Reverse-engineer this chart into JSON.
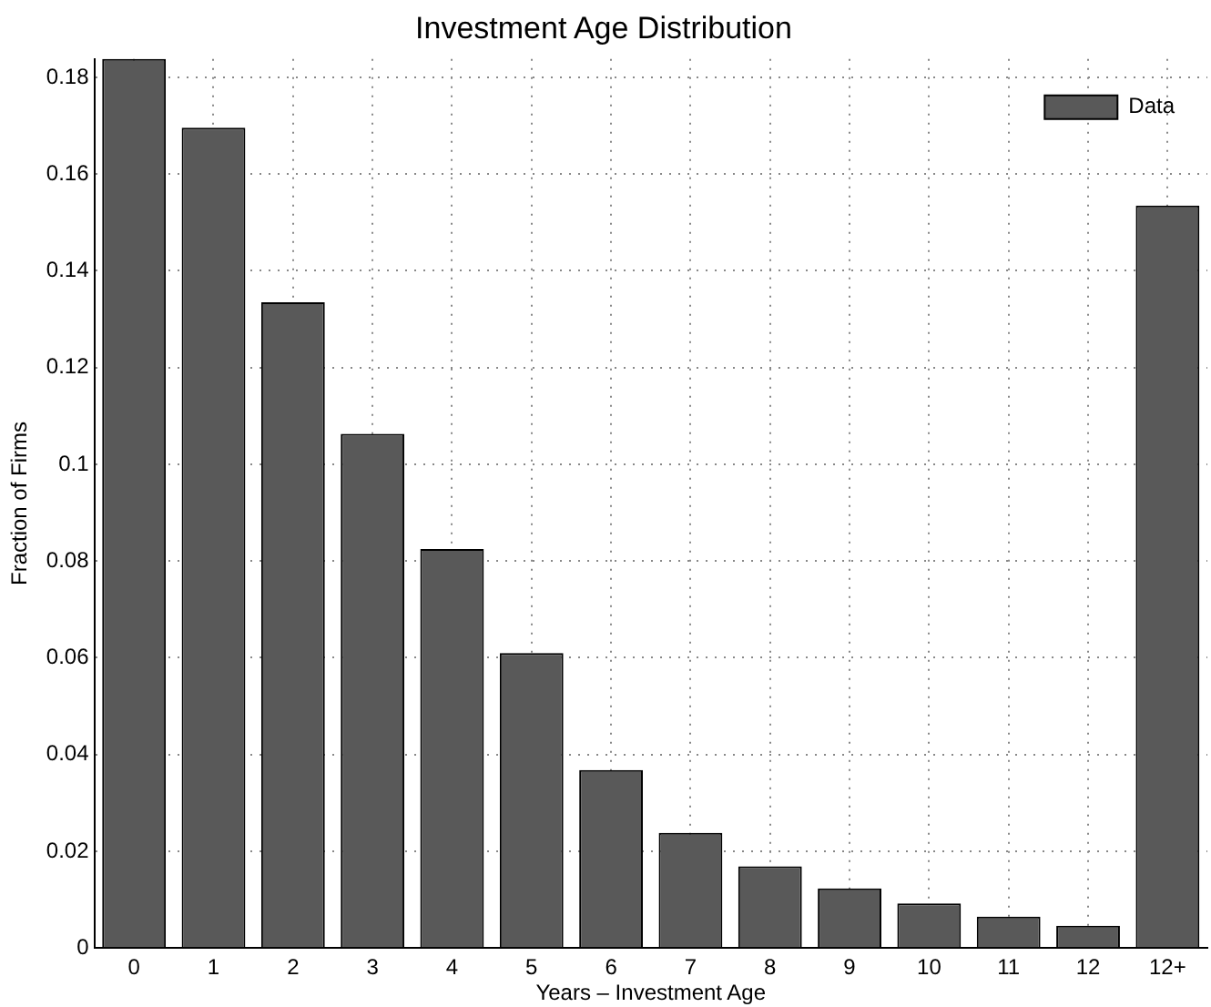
{
  "chart_data": {
    "type": "bar",
    "title": "Investment Age Distribution",
    "xlabel": "Years – Investment Age",
    "ylabel": "Fraction of Firms",
    "categories": [
      "0",
      "1",
      "2",
      "3",
      "4",
      "5",
      "6",
      "7",
      "8",
      "9",
      "10",
      "11",
      "12",
      "12+"
    ],
    "series": [
      {
        "name": "Data",
        "color": "#595959",
        "values": [
          0.1838,
          0.1696,
          0.1335,
          0.1063,
          0.0825,
          0.061,
          0.0368,
          0.0238,
          0.0169,
          0.0123,
          0.0092,
          0.0065,
          0.0046,
          0.1535
        ]
      }
    ],
    "ylim": [
      0,
      0.1838
    ],
    "yticks": [
      0,
      0.02,
      0.04,
      0.06,
      0.08,
      0.1,
      0.12,
      0.14,
      0.16,
      0.18
    ],
    "grid": true,
    "legend": "top right"
  }
}
